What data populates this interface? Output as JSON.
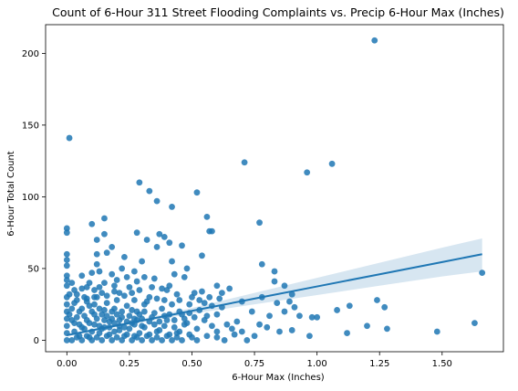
{
  "chart_data": {
    "type": "scatter",
    "title": "Count of 6-Hour 311 Street Flooding Complaints vs. Precip 6-Hour Max (Inches)",
    "xlabel": "6-Hour Max (Inches)",
    "ylabel": "6-Hour Total Count",
    "xlim": [
      -0.085,
      1.745
    ],
    "ylim": [
      -8,
      220
    ],
    "xticks": [
      0.0,
      0.25,
      0.5,
      0.75,
      1.0,
      1.25,
      1.5
    ],
    "xtick_labels": [
      "0.00",
      "0.25",
      "0.50",
      "0.75",
      "1.00",
      "1.25",
      "1.50"
    ],
    "yticks": [
      0,
      50,
      100,
      150,
      200
    ],
    "ytick_labels": [
      "0",
      "50",
      "100",
      "150",
      "200"
    ],
    "grid": false,
    "colors": {
      "points": "#1f77b4",
      "line": "#1f77b4",
      "band": "#1f77b4"
    },
    "regression": {
      "x": [
        0.0,
        0.25,
        0.5,
        0.75,
        1.0,
        1.25,
        1.5,
        1.66
      ],
      "y": [
        3.5,
        12,
        20.5,
        29,
        37.5,
        46,
        54.5,
        60
      ],
      "ci_low": [
        2.5,
        11,
        18.5,
        25,
        31.5,
        38,
        44.5,
        48
      ],
      "ci_high": [
        4.5,
        13,
        22.5,
        33,
        43.5,
        54,
        64.5,
        71
      ]
    },
    "points": [
      [
        0.01,
        141
      ],
      [
        1.23,
        209
      ],
      [
        0.71,
        124
      ],
      [
        1.06,
        123
      ],
      [
        0.96,
        117
      ],
      [
        0.29,
        110
      ],
      [
        0.52,
        103
      ],
      [
        0.33,
        104
      ],
      [
        0.36,
        97
      ],
      [
        0.42,
        93
      ],
      [
        0.56,
        86
      ],
      [
        0.0,
        78
      ],
      [
        0.0,
        75
      ],
      [
        0.1,
        81
      ],
      [
        0.15,
        85
      ],
      [
        0.77,
        82
      ],
      [
        0.15,
        74
      ],
      [
        0.28,
        75
      ],
      [
        0.32,
        70
      ],
      [
        0.37,
        74
      ],
      [
        0.57,
        76
      ],
      [
        0.58,
        76
      ],
      [
        0.39,
        72
      ],
      [
        0.41,
        68
      ],
      [
        0.12,
        70
      ],
      [
        0.12,
        60
      ],
      [
        0.16,
        61
      ],
      [
        0.18,
        65
      ],
      [
        0.0,
        60
      ],
      [
        0.0,
        56
      ],
      [
        0.36,
        65
      ],
      [
        0.46,
        66
      ],
      [
        0.23,
        58
      ],
      [
        0.3,
        55
      ],
      [
        0.54,
        59
      ],
      [
        0.78,
        53
      ],
      [
        0.83,
        48
      ],
      [
        0.42,
        55
      ],
      [
        0.48,
        50
      ],
      [
        0.12,
        53
      ],
      [
        0.22,
        50
      ],
      [
        0.27,
        48
      ],
      [
        0.0,
        52
      ],
      [
        0.0,
        45
      ],
      [
        0.06,
        45
      ],
      [
        0.1,
        47
      ],
      [
        0.13,
        48
      ],
      [
        0.18,
        46
      ],
      [
        0.24,
        44
      ],
      [
        0.31,
        44
      ],
      [
        0.43,
        46
      ],
      [
        0.47,
        44
      ],
      [
        0.6,
        38
      ],
      [
        0.65,
        36
      ],
      [
        0.78,
        30
      ],
      [
        0.83,
        41
      ],
      [
        0.87,
        38
      ],
      [
        0.15,
        40
      ],
      [
        0.2,
        42
      ],
      [
        0.28,
        41
      ],
      [
        0.35,
        43
      ],
      [
        0.38,
        36
      ],
      [
        0.0,
        42
      ],
      [
        0.0,
        38
      ],
      [
        0.03,
        35
      ],
      [
        0.08,
        37
      ],
      [
        0.11,
        35
      ],
      [
        0.14,
        33
      ],
      [
        0.19,
        34
      ],
      [
        0.23,
        31
      ],
      [
        0.26,
        33
      ],
      [
        0.33,
        30
      ],
      [
        0.4,
        35
      ],
      [
        0.44,
        32
      ],
      [
        0.5,
        30
      ],
      [
        0.55,
        26
      ],
      [
        0.62,
        23
      ],
      [
        0.7,
        27
      ],
      [
        0.74,
        20
      ],
      [
        0.81,
        17
      ],
      [
        0.84,
        26
      ],
      [
        0.87,
        20
      ],
      [
        0.89,
        27
      ],
      [
        0.9,
        32
      ],
      [
        0.91,
        23
      ],
      [
        0.93,
        17
      ],
      [
        0.98,
        16
      ],
      [
        1.13,
        24
      ],
      [
        1.08,
        21
      ],
      [
        1.24,
        28
      ],
      [
        1.27,
        23
      ],
      [
        1.0,
        16
      ],
      [
        1.66,
        47
      ],
      [
        1.63,
        12
      ],
      [
        1.48,
        6
      ],
      [
        1.28,
        8
      ],
      [
        1.2,
        10
      ],
      [
        1.12,
        5
      ],
      [
        0.97,
        3
      ],
      [
        0.9,
        7
      ],
      [
        0.85,
        6
      ],
      [
        0.8,
        9
      ],
      [
        0.75,
        3
      ],
      [
        0.7,
        6
      ],
      [
        0.67,
        4
      ],
      [
        0.63,
        0
      ],
      [
        0.6,
        2
      ],
      [
        0.58,
        10
      ],
      [
        0.55,
        14
      ],
      [
        0.52,
        8
      ],
      [
        0.48,
        12
      ],
      [
        0.46,
        18
      ],
      [
        0.44,
        5
      ],
      [
        0.42,
        25
      ],
      [
        0.4,
        14
      ],
      [
        0.38,
        22
      ],
      [
        0.36,
        6
      ],
      [
        0.34,
        16
      ],
      [
        0.32,
        27
      ],
      [
        0.3,
        10
      ],
      [
        0.28,
        20
      ],
      [
        0.27,
        3
      ],
      [
        0.26,
        12
      ],
      [
        0.24,
        24
      ],
      [
        0.22,
        16
      ],
      [
        0.21,
        7
      ],
      [
        0.2,
        28
      ],
      [
        0.19,
        12
      ],
      [
        0.18,
        20
      ],
      [
        0.17,
        4
      ],
      [
        0.16,
        26
      ],
      [
        0.15,
        14
      ],
      [
        0.14,
        8
      ],
      [
        0.13,
        22
      ],
      [
        0.12,
        30
      ],
      [
        0.11,
        18
      ],
      [
        0.1,
        6
      ],
      [
        0.09,
        24
      ],
      [
        0.08,
        14
      ],
      [
        0.07,
        30
      ],
      [
        0.06,
        9
      ],
      [
        0.05,
        20
      ],
      [
        0.04,
        28
      ],
      [
        0.03,
        12
      ],
      [
        0.02,
        22
      ],
      [
        0.01,
        32
      ],
      [
        0.0,
        30
      ],
      [
        0.0,
        25
      ],
      [
        0.0,
        20
      ],
      [
        0.0,
        15
      ],
      [
        0.0,
        10
      ],
      [
        0.0,
        5
      ],
      [
        0.0,
        0
      ],
      [
        0.02,
        0
      ],
      [
        0.04,
        2
      ],
      [
        0.06,
        0
      ],
      [
        0.08,
        3
      ],
      [
        0.1,
        0
      ],
      [
        0.12,
        2
      ],
      [
        0.14,
        0
      ],
      [
        0.16,
        3
      ],
      [
        0.18,
        0
      ],
      [
        0.2,
        2
      ],
      [
        0.22,
        0
      ],
      [
        0.24,
        4
      ],
      [
        0.26,
        0
      ],
      [
        0.28,
        2
      ],
      [
        0.3,
        0
      ],
      [
        0.32,
        3
      ],
      [
        0.34,
        0
      ],
      [
        0.36,
        2
      ],
      [
        0.38,
        0
      ],
      [
        0.4,
        3
      ],
      [
        0.42,
        0
      ],
      [
        0.44,
        2
      ],
      [
        0.46,
        0
      ],
      [
        0.5,
        2
      ],
      [
        0.52,
        0
      ],
      [
        0.56,
        3
      ],
      [
        0.6,
        6
      ],
      [
        0.64,
        11
      ],
      [
        0.68,
        13
      ],
      [
        0.72,
        0
      ],
      [
        0.77,
        11
      ],
      [
        0.03,
        6
      ],
      [
        0.05,
        3
      ],
      [
        0.07,
        8
      ],
      [
        0.09,
        2
      ],
      [
        0.11,
        11
      ],
      [
        0.13,
        5
      ],
      [
        0.15,
        9
      ],
      [
        0.17,
        13
      ],
      [
        0.19,
        6
      ],
      [
        0.21,
        10
      ],
      [
        0.23,
        3
      ],
      [
        0.25,
        8
      ],
      [
        0.27,
        15
      ],
      [
        0.29,
        5
      ],
      [
        0.31,
        9
      ],
      [
        0.33,
        4
      ],
      [
        0.35,
        11
      ],
      [
        0.37,
        7
      ],
      [
        0.39,
        10
      ],
      [
        0.41,
        4
      ],
      [
        0.43,
        9
      ],
      [
        0.45,
        6
      ],
      [
        0.47,
        11
      ],
      [
        0.49,
        4
      ],
      [
        0.01,
        18
      ],
      [
        0.02,
        14
      ],
      [
        0.03,
        26
      ],
      [
        0.04,
        16
      ],
      [
        0.05,
        11
      ],
      [
        0.06,
        22
      ],
      [
        0.07,
        17
      ],
      [
        0.08,
        27
      ],
      [
        0.09,
        12
      ],
      [
        0.1,
        20
      ],
      [
        0.11,
        25
      ],
      [
        0.12,
        15
      ],
      [
        0.13,
        10
      ],
      [
        0.14,
        18
      ],
      [
        0.15,
        21
      ],
      [
        0.16,
        17
      ],
      [
        0.17,
        9
      ],
      [
        0.18,
        15
      ],
      [
        0.19,
        22
      ],
      [
        0.2,
        18
      ],
      [
        0.21,
        14
      ],
      [
        0.22,
        20
      ],
      [
        0.23,
        9
      ],
      [
        0.24,
        13
      ],
      [
        0.25,
        17
      ],
      [
        0.26,
        21
      ],
      [
        0.27,
        11
      ],
      [
        0.28,
        14
      ],
      [
        0.29,
        18
      ],
      [
        0.3,
        15
      ],
      [
        0.31,
        20
      ],
      [
        0.33,
        13
      ],
      [
        0.35,
        19
      ],
      [
        0.37,
        13
      ],
      [
        0.39,
        17
      ],
      [
        0.41,
        18
      ],
      [
        0.43,
        14
      ],
      [
        0.45,
        20
      ],
      [
        0.47,
        15
      ],
      [
        0.49,
        19
      ],
      [
        0.51,
        16
      ],
      [
        0.53,
        21
      ],
      [
        0.56,
        17
      ],
      [
        0.58,
        24
      ],
      [
        0.6,
        18
      ],
      [
        0.54,
        34
      ],
      [
        0.62,
        33
      ],
      [
        0.66,
        8
      ],
      [
        0.02,
        40
      ],
      [
        0.04,
        32
      ],
      [
        0.06,
        36
      ],
      [
        0.08,
        29
      ],
      [
        0.09,
        40
      ],
      [
        0.11,
        30
      ],
      [
        0.13,
        37
      ],
      [
        0.16,
        31
      ],
      [
        0.19,
        38
      ],
      [
        0.21,
        33
      ],
      [
        0.25,
        37
      ],
      [
        0.27,
        28
      ],
      [
        0.29,
        35
      ],
      [
        0.31,
        25
      ],
      [
        0.34,
        37
      ],
      [
        0.36,
        29
      ],
      [
        0.39,
        28
      ],
      [
        0.41,
        38
      ],
      [
        0.45,
        28
      ],
      [
        0.49,
        25
      ],
      [
        0.51,
        33
      ],
      [
        0.53,
        28
      ],
      [
        0.57,
        30
      ],
      [
        0.61,
        29
      ]
    ]
  }
}
